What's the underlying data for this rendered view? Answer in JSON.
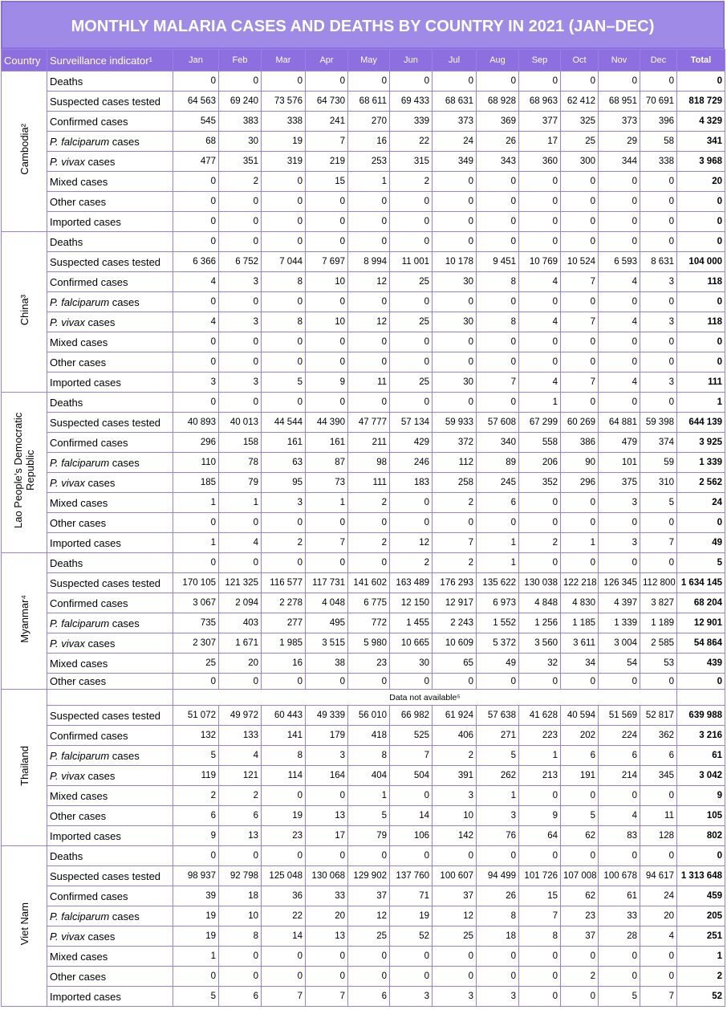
{
  "title": "MONTHLY MALARIA CASES AND DEATHS BY COUNTRY IN 2021 (JAN–DEC)",
  "table": {
    "header": [
      "Country",
      "Surveillance indicator¹",
      "Jan",
      "Feb",
      "Mar",
      "Apr",
      "May",
      "Jun",
      "Jul",
      "Aug",
      "Sep",
      "Oct",
      "Nov",
      "Dec",
      "Total"
    ],
    "countries": [
      {
        "name": "Cambodia²",
        "rows": [
          {
            "indicator": "Deaths",
            "values": [
              "0",
              "0",
              "0",
              "0",
              "0",
              "0",
              "0",
              "0",
              "0",
              "0",
              "0",
              "0",
              "0"
            ]
          },
          {
            "indicator": "Suspected cases tested",
            "values": [
              "64 563",
              "69 240",
              "73 576",
              "64 730",
              "68 611",
              "69 433",
              "68 631",
              "68 928",
              "68 963",
              "62 412",
              "68 951",
              "70 691",
              "818 729"
            ]
          },
          {
            "indicator": "Confirmed cases",
            "values": [
              "545",
              "383",
              "338",
              "241",
              "270",
              "339",
              "373",
              "369",
              "377",
              "325",
              "373",
              "396",
              "4 329"
            ]
          },
          {
            "indicator": "P. falciparum cases",
            "values": [
              "68",
              "30",
              "19",
              "7",
              "16",
              "22",
              "24",
              "26",
              "17",
              "25",
              "29",
              "58",
              "341"
            ]
          },
          {
            "indicator": "P. vivax cases",
            "values": [
              "477",
              "351",
              "319",
              "219",
              "253",
              "315",
              "349",
              "343",
              "360",
              "300",
              "344",
              "338",
              "3 968"
            ]
          },
          {
            "indicator": "Mixed cases",
            "values": [
              "0",
              "2",
              "0",
              "15",
              "1",
              "2",
              "0",
              "0",
              "0",
              "0",
              "0",
              "0",
              "20"
            ]
          },
          {
            "indicator": "Other cases",
            "values": [
              "0",
              "0",
              "0",
              "0",
              "0",
              "0",
              "0",
              "0",
              "0",
              "0",
              "0",
              "0",
              "0"
            ]
          },
          {
            "indicator": "Imported cases",
            "values": [
              "0",
              "0",
              "0",
              "0",
              "0",
              "0",
              "0",
              "0",
              "0",
              "0",
              "0",
              "0",
              "0"
            ]
          }
        ]
      },
      {
        "name": "China³",
        "rows": [
          {
            "indicator": "Deaths",
            "values": [
              "0",
              "0",
              "0",
              "0",
              "0",
              "0",
              "0",
              "0",
              "0",
              "0",
              "0",
              "0",
              "0"
            ]
          },
          {
            "indicator": "Suspected cases tested",
            "values": [
              "6 366",
              "6 752",
              "7 044",
              "7 697",
              "8 994",
              "11 001",
              "10 178",
              "9 451",
              "10 769",
              "10 524",
              "6 593",
              "8 631",
              "104 000"
            ]
          },
          {
            "indicator": "Confirmed cases",
            "values": [
              "4",
              "3",
              "8",
              "10",
              "12",
              "25",
              "30",
              "8",
              "4",
              "7",
              "4",
              "3",
              "118"
            ]
          },
          {
            "indicator": "P. falciparum cases",
            "values": [
              "0",
              "0",
              "0",
              "0",
              "0",
              "0",
              "0",
              "0",
              "0",
              "0",
              "0",
              "0",
              "0"
            ]
          },
          {
            "indicator": "P. vivax cases",
            "values": [
              "4",
              "3",
              "8",
              "10",
              "12",
              "25",
              "30",
              "8",
              "4",
              "7",
              "4",
              "3",
              "118"
            ]
          },
          {
            "indicator": "Mixed cases",
            "values": [
              "0",
              "0",
              "0",
              "0",
              "0",
              "0",
              "0",
              "0",
              "0",
              "0",
              "0",
              "0",
              "0"
            ]
          },
          {
            "indicator": "Other cases",
            "values": [
              "0",
              "0",
              "0",
              "0",
              "0",
              "0",
              "0",
              "0",
              "0",
              "0",
              "0",
              "0",
              "0"
            ]
          },
          {
            "indicator": "Imported cases",
            "values": [
              "3",
              "3",
              "5",
              "9",
              "11",
              "25",
              "30",
              "7",
              "4",
              "7",
              "4",
              "3",
              "111"
            ]
          }
        ]
      },
      {
        "name": "Lao People’s Democratic Republic",
        "rows": [
          {
            "indicator": "Deaths",
            "values": [
              "0",
              "0",
              "0",
              "0",
              "0",
              "0",
              "0",
              "0",
              "1",
              "0",
              "0",
              "0",
              "1"
            ]
          },
          {
            "indicator": "Suspected cases tested",
            "values": [
              "40 893",
              "40 013",
              "44 544",
              "44 390",
              "47 777",
              "57 134",
              "59 933",
              "57 608",
              "67 299",
              "60 269",
              "64 881",
              "59 398",
              "644 139"
            ]
          },
          {
            "indicator": "Confirmed cases",
            "values": [
              "296",
              "158",
              "161",
              "161",
              "211",
              "429",
              "372",
              "340",
              "558",
              "386",
              "479",
              "374",
              "3 925"
            ]
          },
          {
            "indicator": "P. falciparum cases",
            "values": [
              "110",
              "78",
              "63",
              "87",
              "98",
              "246",
              "112",
              "89",
              "206",
              "90",
              "101",
              "59",
              "1 339"
            ]
          },
          {
            "indicator": "P. vivax cases",
            "values": [
              "185",
              "79",
              "95",
              "73",
              "111",
              "183",
              "258",
              "245",
              "352",
              "296",
              "375",
              "310",
              "2 562"
            ]
          },
          {
            "indicator": "Mixed cases",
            "values": [
              "1",
              "1",
              "3",
              "1",
              "2",
              "0",
              "2",
              "6",
              "0",
              "0",
              "3",
              "5",
              "24"
            ]
          },
          {
            "indicator": "Other cases",
            "values": [
              "0",
              "0",
              "0",
              "0",
              "0",
              "0",
              "0",
              "0",
              "0",
              "0",
              "0",
              "0",
              "0"
            ]
          },
          {
            "indicator": "Imported cases",
            "values": [
              "1",
              "4",
              "2",
              "7",
              "2",
              "12",
              "7",
              "1",
              "2",
              "1",
              "3",
              "7",
              "49"
            ]
          }
        ]
      },
      {
        "name": "Myanmar⁴",
        "rows": [
          {
            "indicator": "Deaths",
            "values": [
              "0",
              "0",
              "0",
              "0",
              "0",
              "2",
              "2",
              "1",
              "0",
              "0",
              "0",
              "0",
              "5"
            ]
          },
          {
            "indicator": "Suspected cases tested",
            "values": [
              "170 105",
              "121 325",
              "116 577",
              "117 731",
              "141 602",
              "163 489",
              "176 293",
              "135 622",
              "130 038",
              "122 218",
              "126 345",
              "112 800",
              "1 634 145"
            ]
          },
          {
            "indicator": "Confirmed cases",
            "values": [
              "3 067",
              "2 094",
              "2 278",
              "4 048",
              "6 775",
              "12 150",
              "12 917",
              "6 973",
              "4 848",
              "4 830",
              "4 397",
              "3 827",
              "68 204"
            ]
          },
          {
            "indicator": "P. falciparum cases",
            "values": [
              "735",
              "403",
              "277",
              "495",
              "772",
              "1 455",
              "2 243",
              "1 552",
              "1 256",
              "1 185",
              "1 339",
              "1 189",
              "12 901"
            ]
          },
          {
            "indicator": "P. vivax cases",
            "values": [
              "2 307",
              "1 671",
              "1 985",
              "3 515",
              "5 980",
              "10 665",
              "10 609",
              "5 372",
              "3 560",
              "3 611",
              "3 004",
              "2 585",
              "54 864"
            ]
          },
          {
            "indicator": "Mixed cases",
            "values": [
              "25",
              "20",
              "16",
              "38",
              "23",
              "30",
              "65",
              "49",
              "32",
              "34",
              "54",
              "53",
              "439"
            ]
          },
          {
            "indicator": "Other cases",
            "values": [
              "0",
              "0",
              "0",
              "0",
              "0",
              "0",
              "0",
              "0",
              "0",
              "0",
              "0",
              "0",
              "0"
            ]
          }
        ]
      },
      {
        "name": "Thailand",
        "rows": [
          {
            "note": "Data not available⁵"
          },
          {
            "indicator": "Suspected cases tested",
            "values": [
              "51 072",
              "49 972",
              "60 443",
              "49 339",
              "56 010",
              "66 982",
              "61 924",
              "57 638",
              "41 628",
              "40 594",
              "51 569",
              "52 817",
              "639 988"
            ]
          },
          {
            "indicator": "Confirmed cases",
            "values": [
              "132",
              "133",
              "141",
              "179",
              "418",
              "525",
              "406",
              "271",
              "223",
              "202",
              "224",
              "362",
              "3 216"
            ]
          },
          {
            "indicator": "P. falciparum cases",
            "values": [
              "5",
              "4",
              "8",
              "3",
              "8",
              "7",
              "2",
              "5",
              "1",
              "6",
              "6",
              "6",
              "61"
            ]
          },
          {
            "indicator": "P. vivax cases",
            "values": [
              "119",
              "121",
              "114",
              "164",
              "404",
              "504",
              "391",
              "262",
              "213",
              "191",
              "214",
              "345",
              "3 042"
            ]
          },
          {
            "indicator": "Mixed cases",
            "values": [
              "2",
              "2",
              "0",
              "0",
              "1",
              "0",
              "3",
              "1",
              "0",
              "0",
              "0",
              "0",
              "9"
            ]
          },
          {
            "indicator": "Other cases",
            "values": [
              "6",
              "6",
              "19",
              "13",
              "5",
              "14",
              "10",
              "3",
              "9",
              "5",
              "4",
              "11",
              "105"
            ]
          },
          {
            "indicator": "Imported cases",
            "values": [
              "9",
              "13",
              "23",
              "17",
              "79",
              "106",
              "142",
              "76",
              "64",
              "62",
              "83",
              "128",
              "802"
            ]
          }
        ]
      },
      {
        "name": "Viet Nam",
        "rows": [
          {
            "indicator": "Deaths",
            "values": [
              "0",
              "0",
              "0",
              "0",
              "0",
              "0",
              "0",
              "0",
              "0",
              "0",
              "0",
              "0",
              "0"
            ]
          },
          {
            "indicator": "Suspected cases tested",
            "values": [
              "98 937",
              "92 798",
              "125 048",
              "130 068",
              "129 902",
              "137 760",
              "100 607",
              "94 499",
              "101 726",
              "107 008",
              "100 678",
              "94 617",
              "1 313 648"
            ]
          },
          {
            "indicator": "Confirmed cases",
            "values": [
              "39",
              "18",
              "36",
              "33",
              "37",
              "71",
              "37",
              "26",
              "15",
              "62",
              "61",
              "24",
              "459"
            ]
          },
          {
            "indicator": "P. falciparum cases",
            "values": [
              "19",
              "10",
              "22",
              "20",
              "12",
              "19",
              "12",
              "8",
              "7",
              "23",
              "33",
              "20",
              "205"
            ]
          },
          {
            "indicator": "P. vivax cases",
            "values": [
              "19",
              "8",
              "14",
              "13",
              "25",
              "52",
              "25",
              "18",
              "8",
              "37",
              "28",
              "4",
              "251"
            ]
          },
          {
            "indicator": "Mixed cases",
            "values": [
              "1",
              "0",
              "0",
              "0",
              "0",
              "0",
              "0",
              "0",
              "0",
              "0",
              "0",
              "0",
              "1"
            ]
          },
          {
            "indicator": "Other cases",
            "values": [
              "0",
              "0",
              "0",
              "0",
              "0",
              "0",
              "0",
              "0",
              "0",
              "2",
              "0",
              "0",
              "2"
            ]
          },
          {
            "indicator": "Imported cases",
            "values": [
              "5",
              "6",
              "7",
              "7",
              "6",
              "3",
              "3",
              "3",
              "0",
              "0",
              "5",
              "7",
              "52"
            ]
          }
        ]
      }
    ]
  }
}
